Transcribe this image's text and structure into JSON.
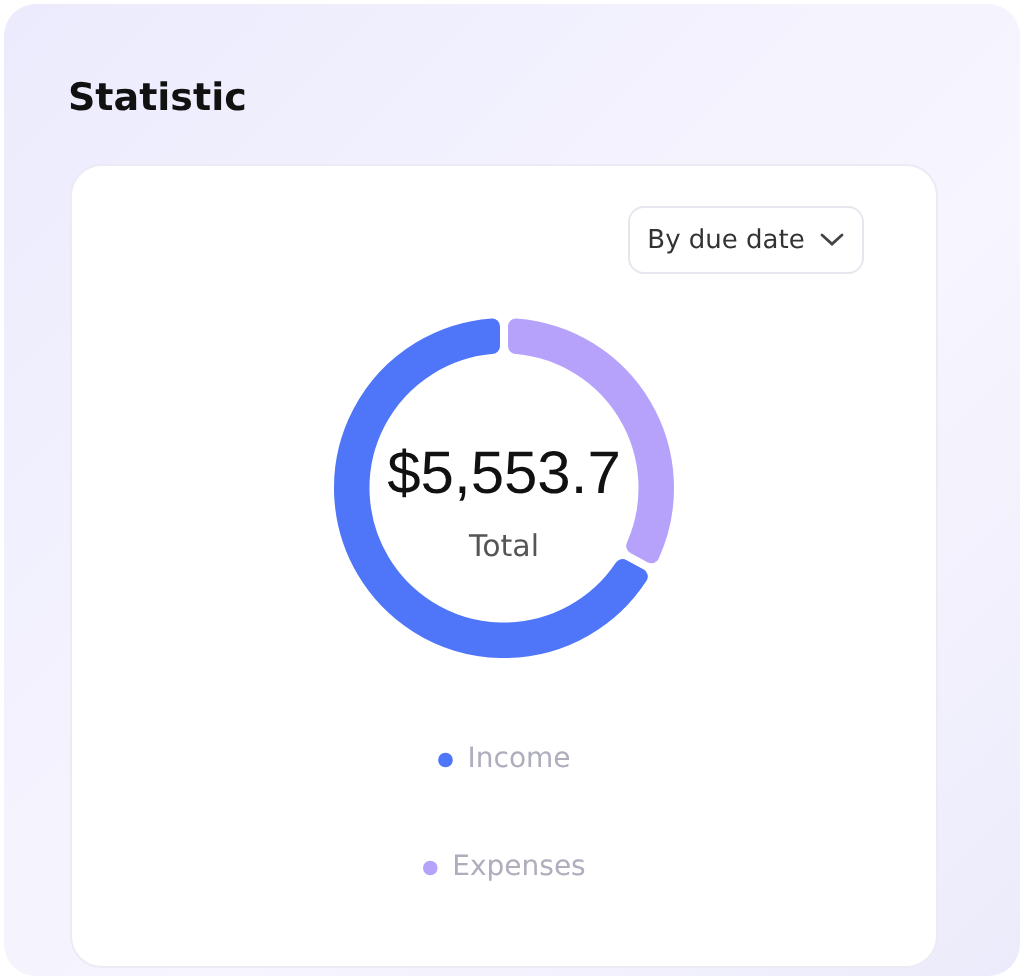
{
  "chart_data": {
    "type": "donut",
    "title": "Statistic",
    "categories": [
      "Income",
      "Expenses"
    ],
    "values": [
      67,
      33
    ],
    "colors": [
      "#4f75f8",
      "#b7a2fb"
    ],
    "legend": "bottom",
    "annotations": [
      "By due date",
      "$5,553.7",
      "Total"
    ]
  }
}
